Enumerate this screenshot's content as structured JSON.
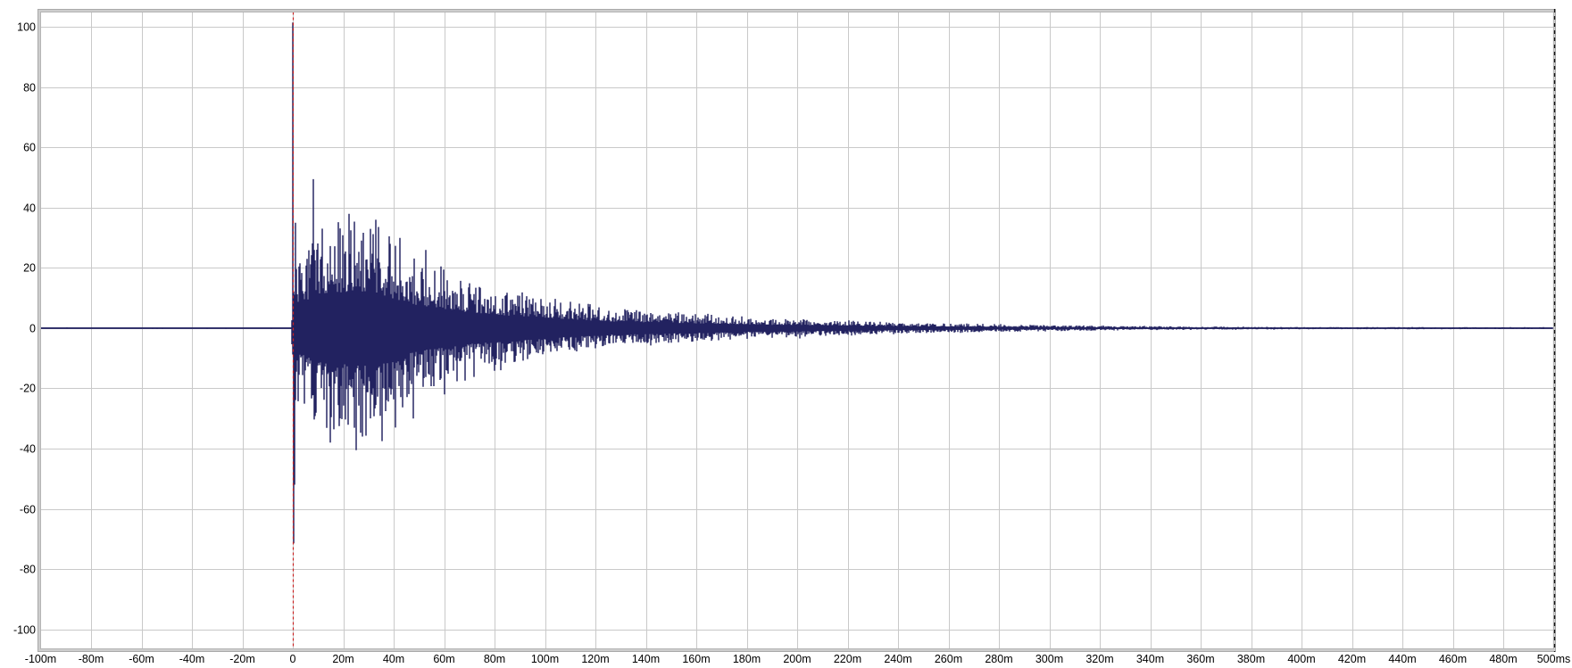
{
  "chart_data": {
    "type": "line",
    "subtype": "impulse-response-waveform",
    "title": "",
    "xlabel": "",
    "ylabel": "%",
    "x_unit": "ms",
    "xlim": [
      -100,
      500
    ],
    "ylim": [
      -106.5,
      105
    ],
    "grid": {
      "x_step": 20,
      "y_step": 20,
      "visible": true
    },
    "legend": "none",
    "x_ticks": [
      {
        "t": -100,
        "label": "-100m"
      },
      {
        "t": -80,
        "label": "-80m"
      },
      {
        "t": -60,
        "label": "-60m"
      },
      {
        "t": -40,
        "label": "-40m"
      },
      {
        "t": -20,
        "label": "-20m"
      },
      {
        "t": 0,
        "label": "0"
      },
      {
        "t": 20,
        "label": "20m"
      },
      {
        "t": 40,
        "label": "40m"
      },
      {
        "t": 60,
        "label": "60m"
      },
      {
        "t": 80,
        "label": "80m"
      },
      {
        "t": 100,
        "label": "100m"
      },
      {
        "t": 120,
        "label": "120m"
      },
      {
        "t": 140,
        "label": "140m"
      },
      {
        "t": 160,
        "label": "160m"
      },
      {
        "t": 180,
        "label": "180m"
      },
      {
        "t": 200,
        "label": "200m"
      },
      {
        "t": 220,
        "label": "220m"
      },
      {
        "t": 240,
        "label": "240m"
      },
      {
        "t": 260,
        "label": "260m"
      },
      {
        "t": 280,
        "label": "280m"
      },
      {
        "t": 300,
        "label": "300m"
      },
      {
        "t": 320,
        "label": "320m"
      },
      {
        "t": 340,
        "label": "340m"
      },
      {
        "t": 360,
        "label": "360m"
      },
      {
        "t": 380,
        "label": "380m"
      },
      {
        "t": 400,
        "label": "400m"
      },
      {
        "t": 420,
        "label": "420m"
      },
      {
        "t": 440,
        "label": "440m"
      },
      {
        "t": 460,
        "label": "460m"
      },
      {
        "t": 480,
        "label": "480m"
      },
      {
        "t": 500,
        "label": "500ms"
      }
    ],
    "y_ticks": [
      {
        "v": 100,
        "label": "100"
      },
      {
        "v": 80,
        "label": "80"
      },
      {
        "v": 60,
        "label": "60"
      },
      {
        "v": 40,
        "label": "40"
      },
      {
        "v": 20,
        "label": "20"
      },
      {
        "v": 0,
        "label": "0"
      },
      {
        "v": -20,
        "label": "-20"
      },
      {
        "v": -40,
        "label": "-40"
      },
      {
        "v": -60,
        "label": "-60"
      },
      {
        "v": -80,
        "label": "-80"
      },
      {
        "v": -100,
        "label": "-100"
      }
    ],
    "time_zero_marker": {
      "t": 0,
      "style": "dashed"
    },
    "window_end_marker": {
      "t": 500,
      "style": "dashed"
    },
    "baseline": 0,
    "pre_trigger_amplitude": 0.25,
    "envelope": [
      [
        -100,
        0.25
      ],
      [
        -0.5,
        0.25
      ],
      [
        0.2,
        28
      ],
      [
        2,
        25
      ],
      [
        4,
        25
      ],
      [
        6,
        27
      ],
      [
        8,
        32
      ],
      [
        10,
        32
      ],
      [
        12,
        33
      ],
      [
        15,
        34
      ],
      [
        20,
        34
      ],
      [
        25,
        36
      ],
      [
        30,
        33
      ],
      [
        33,
        34
      ],
      [
        35,
        31
      ],
      [
        40,
        28
      ],
      [
        45,
        25
      ],
      [
        50,
        21
      ],
      [
        55,
        20
      ],
      [
        60,
        18
      ],
      [
        65,
        16
      ],
      [
        70,
        15
      ],
      [
        75,
        14
      ],
      [
        80,
        13
      ],
      [
        85,
        12
      ],
      [
        90,
        11
      ],
      [
        95,
        10.5
      ],
      [
        100,
        10
      ],
      [
        110,
        8
      ],
      [
        120,
        7
      ],
      [
        130,
        6
      ],
      [
        140,
        5.5
      ],
      [
        150,
        5
      ],
      [
        160,
        4.5
      ],
      [
        170,
        4
      ],
      [
        180,
        3.5
      ],
      [
        190,
        3.2
      ],
      [
        200,
        3
      ],
      [
        220,
        2.4
      ],
      [
        240,
        1.8
      ],
      [
        260,
        1.5
      ],
      [
        280,
        1.2
      ],
      [
        300,
        1.0
      ],
      [
        320,
        0.8
      ],
      [
        340,
        0.65
      ],
      [
        370,
        0.5
      ],
      [
        400,
        0.4
      ],
      [
        450,
        0.35
      ],
      [
        500,
        0.3
      ]
    ],
    "peaks": [
      [
        0,
        101.5
      ],
      [
        0.2,
        -71.5
      ],
      [
        0.6,
        -52
      ],
      [
        1.0,
        35
      ],
      [
        8.1,
        49.5
      ],
      [
        8.5,
        -30
      ],
      [
        14.8,
        -38
      ],
      [
        18.2,
        35.2
      ],
      [
        22.3,
        38
      ],
      [
        24.4,
        34.6
      ],
      [
        25.3,
        -40.5
      ],
      [
        27.6,
        -36
      ],
      [
        30.9,
        33
      ],
      [
        33.0,
        36
      ],
      [
        35.5,
        -37.5
      ],
      [
        38.2,
        30.5
      ],
      [
        40.6,
        -33
      ],
      [
        42.4,
        30
      ],
      [
        47.9,
        -30
      ],
      [
        52.7,
        26
      ],
      [
        58.6,
        20.5
      ],
      [
        60.3,
        -22
      ],
      [
        132.6,
        6
      ]
    ],
    "noise_seed": 1337
  },
  "colors": {
    "background": "#ffffff",
    "waveform": "#222260",
    "grid": "#c9c9c9",
    "frame_band": "#cdcdcd",
    "frame_outer": "#a9a9a9",
    "frame_inner": "#b5b5b5",
    "marker_red": "#cc2222",
    "marker_black": "#111111",
    "text": "#000000"
  }
}
